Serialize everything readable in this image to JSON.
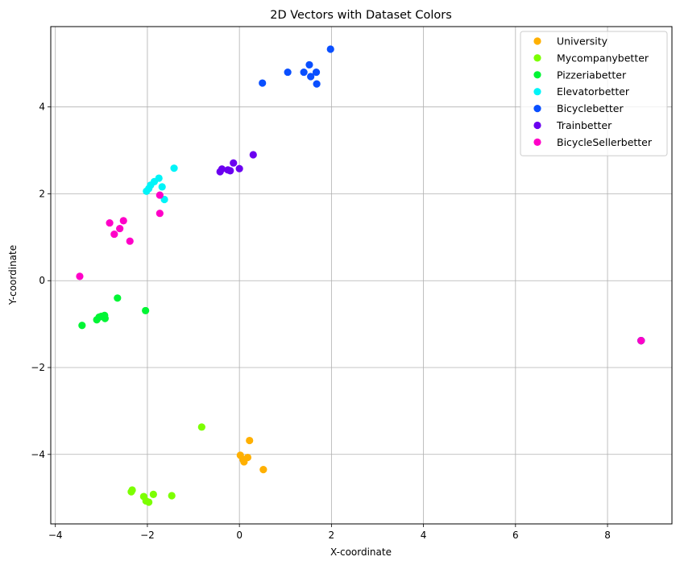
{
  "chart_data": {
    "type": "scatter",
    "title": "2D Vectors with Dataset Colors",
    "xlabel": "X-coordinate",
    "ylabel": "Y-coordinate",
    "xlim": [
      -4.1,
      9.4
    ],
    "ylim": [
      -5.6,
      5.85
    ],
    "x_ticks": [
      -4,
      -2,
      0,
      2,
      4,
      6,
      8
    ],
    "y_ticks": [
      -4,
      -2,
      0,
      2,
      4
    ],
    "grid": true,
    "legend_position": "top-right",
    "series": [
      {
        "name": "University",
        "color": "#ffb000",
        "points": [
          [
            0.22,
            -3.68
          ],
          [
            0.02,
            -4.02
          ],
          [
            0.52,
            -4.35
          ],
          [
            0.08,
            -4.12
          ],
          [
            0.1,
            -4.17
          ],
          [
            0.18,
            -4.07
          ],
          [
            8.73,
            -1.38
          ]
        ]
      },
      {
        "name": "Mycompanybetter",
        "color": "#7cff00",
        "points": [
          [
            -0.82,
            -3.37
          ],
          [
            -2.33,
            -4.82
          ],
          [
            -2.35,
            -4.86
          ],
          [
            -2.08,
            -4.97
          ],
          [
            -1.87,
            -4.92
          ],
          [
            -1.47,
            -4.95
          ],
          [
            -2.03,
            -5.07
          ],
          [
            -1.97,
            -5.1
          ],
          [
            8.73,
            -1.38
          ]
        ]
      },
      {
        "name": "Pizzeriabetter",
        "color": "#00f534",
        "points": [
          [
            -2.65,
            -0.4
          ],
          [
            -2.04,
            -0.69
          ],
          [
            -3.42,
            -1.03
          ],
          [
            -3.05,
            -0.84
          ],
          [
            -3.0,
            -0.82
          ],
          [
            -2.93,
            -0.8
          ],
          [
            -3.1,
            -0.9
          ],
          [
            -2.92,
            -0.87
          ],
          [
            8.73,
            -1.38
          ]
        ]
      },
      {
        "name": "Elevatorbetter",
        "color": "#00f4f8",
        "points": [
          [
            -1.42,
            2.59
          ],
          [
            -1.75,
            2.36
          ],
          [
            -1.85,
            2.28
          ],
          [
            -1.93,
            2.2
          ],
          [
            -1.97,
            2.12
          ],
          [
            -2.02,
            2.06
          ],
          [
            -1.68,
            2.16
          ],
          [
            -1.63,
            1.87
          ],
          [
            8.73,
            -1.38
          ]
        ]
      },
      {
        "name": "Bicyclebetter",
        "color": "#0a4fff",
        "points": [
          [
            1.98,
            5.33
          ],
          [
            1.52,
            4.97
          ],
          [
            1.05,
            4.8
          ],
          [
            1.4,
            4.8
          ],
          [
            1.67,
            4.8
          ],
          [
            1.55,
            4.7
          ],
          [
            0.5,
            4.55
          ],
          [
            1.68,
            4.53
          ],
          [
            8.73,
            -1.38
          ]
        ]
      },
      {
        "name": "Trainbetter",
        "color": "#6b00f0",
        "points": [
          [
            0.3,
            2.9
          ],
          [
            -0.13,
            2.71
          ],
          [
            0.0,
            2.58
          ],
          [
            -0.38,
            2.57
          ],
          [
            -0.25,
            2.55
          ],
          [
            -0.42,
            2.51
          ],
          [
            -0.2,
            2.53
          ],
          [
            8.73,
            -1.38
          ]
        ]
      },
      {
        "name": "BicycleSellerbetter",
        "color": "#ff00c8",
        "points": [
          [
            -1.73,
            1.97
          ],
          [
            -1.73,
            1.55
          ],
          [
            -2.52,
            1.38
          ],
          [
            -2.82,
            1.33
          ],
          [
            -2.6,
            1.2
          ],
          [
            -2.72,
            1.07
          ],
          [
            -2.38,
            0.91
          ],
          [
            -3.47,
            0.1
          ],
          [
            8.73,
            -1.38
          ]
        ]
      }
    ]
  }
}
